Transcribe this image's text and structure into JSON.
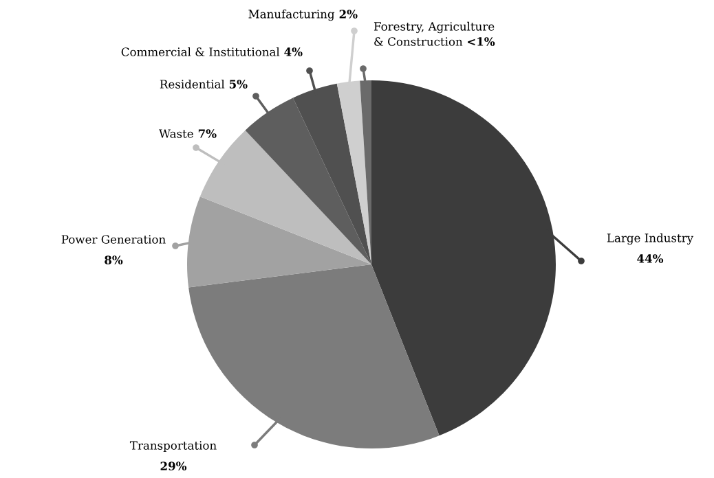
{
  "chart_data": {
    "type": "pie",
    "categories": [
      "Large Industry",
      "Transportation",
      "Power Generation",
      "Waste",
      "Residential",
      "Commercial & Institutional",
      "Manufacturing",
      "Forestry, Agriculture\n& Construction"
    ],
    "values": [
      44,
      29,
      8,
      7,
      5,
      4,
      2,
      1
    ],
    "value_labels": [
      "44%",
      "29%",
      "8%",
      "7%",
      "5%",
      "4%",
      "2%",
      "<1%"
    ],
    "colors": [
      "#3c3c3c",
      "#7c7c7c",
      "#a2a2a2",
      "#bebebe",
      "#5e5e5e",
      "#505050",
      "#cfcfcf",
      "#6a6a6a"
    ]
  }
}
